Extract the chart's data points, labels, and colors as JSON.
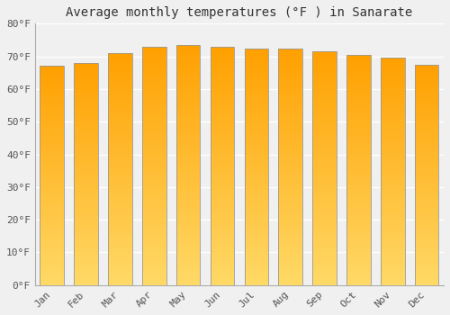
{
  "title": "Average monthly temperatures (°F ) in Sanarate",
  "months": [
    "Jan",
    "Feb",
    "Mar",
    "Apr",
    "May",
    "Jun",
    "Jul",
    "Aug",
    "Sep",
    "Oct",
    "Nov",
    "Dec"
  ],
  "values": [
    67.0,
    68.0,
    71.0,
    73.0,
    73.5,
    73.0,
    72.5,
    72.5,
    71.5,
    70.5,
    69.5,
    67.5
  ],
  "bar_color_bottom": "#FFD966",
  "bar_color_top": "#FFA500",
  "bar_edge_color": "#999999",
  "ylim": [
    0,
    80
  ],
  "yticks": [
    0,
    10,
    20,
    30,
    40,
    50,
    60,
    70,
    80
  ],
  "ytick_labels": [
    "0°F",
    "10°F",
    "20°F",
    "30°F",
    "40°F",
    "50°F",
    "60°F",
    "70°F",
    "80°F"
  ],
  "background_color": "#f0f0f0",
  "plot_bg_color": "#f0f0f0",
  "grid_color": "#ffffff",
  "title_fontsize": 10,
  "tick_fontsize": 8,
  "bar_width": 0.7
}
